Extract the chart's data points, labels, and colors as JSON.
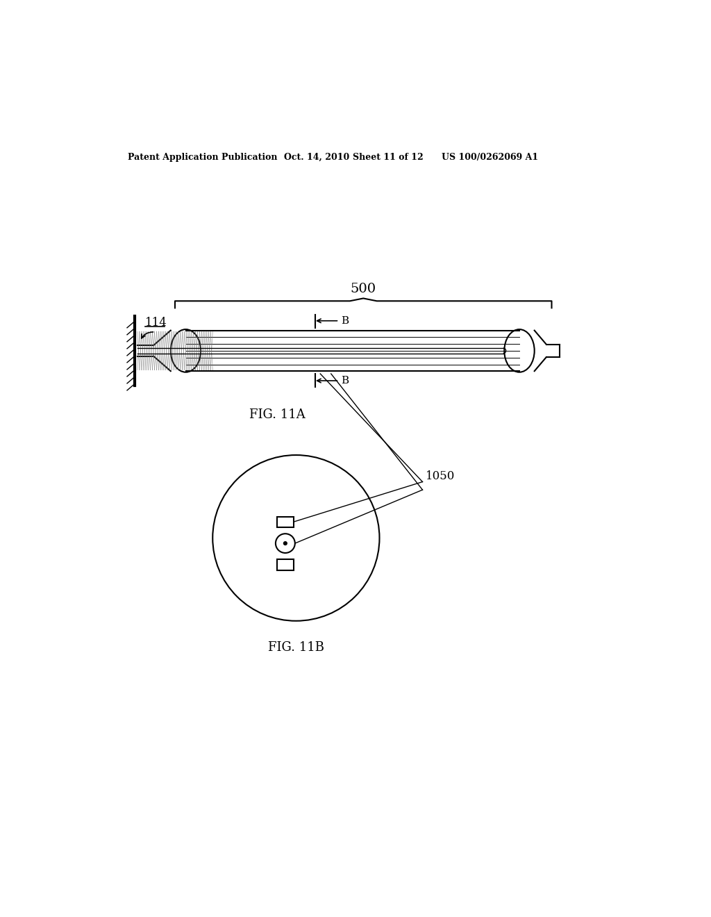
{
  "bg_color": "#ffffff",
  "header_text": "Patent Application Publication",
  "header_date": "Oct. 14, 2010",
  "header_sheet": "Sheet 11 of 12",
  "header_patent": "US 100/0262069 A1",
  "fig11a_label": "FIG. 11A",
  "fig11b_label": "FIG. 11B",
  "label_500": "500",
  "label_114": "114",
  "label_1050": "1050",
  "line_color": "#000000"
}
